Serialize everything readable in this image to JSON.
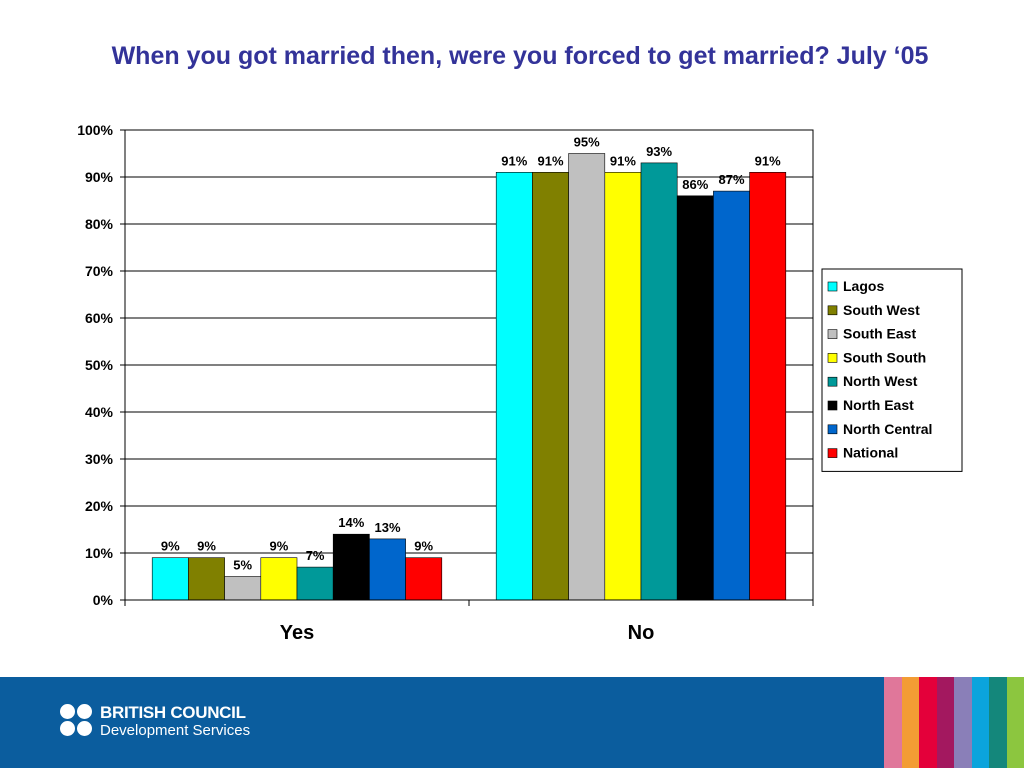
{
  "slide": {
    "title": "When you got married then, were you forced to get married? July ‘05"
  },
  "chart_data": {
    "type": "bar",
    "categories": [
      "Yes",
      "No"
    ],
    "series": [
      {
        "name": "Lagos",
        "color": "#00ffff",
        "values": [
          9,
          91
        ]
      },
      {
        "name": "South West",
        "color": "#808000",
        "values": [
          9,
          91
        ]
      },
      {
        "name": "South East",
        "color": "#c0c0c0",
        "values": [
          5,
          95
        ]
      },
      {
        "name": "South South",
        "color": "#ffff00",
        "values": [
          9,
          91
        ]
      },
      {
        "name": "North West",
        "color": "#009999",
        "values": [
          7,
          93
        ]
      },
      {
        "name": "North East",
        "color": "#000000",
        "values": [
          14,
          86
        ]
      },
      {
        "name": "North Central",
        "color": "#0066cc",
        "values": [
          13,
          87
        ]
      },
      {
        "name": "National",
        "color": "#ff0000",
        "values": [
          9,
          91
        ]
      }
    ],
    "y_ticks": [
      "0%",
      "10%",
      "20%",
      "30%",
      "40%",
      "50%",
      "60%",
      "70%",
      "80%",
      "90%",
      "100%"
    ],
    "ylim": [
      0,
      100
    ],
    "value_suffix": "%",
    "grid": true,
    "legend_position": "right"
  },
  "footer": {
    "logo_line1": "BRITISH COUNCIL",
    "logo_line2": "Development Services",
    "stripe_colors": [
      "#e0779a",
      "#f39c34",
      "#e4003a",
      "#a3185f",
      "#8a7fb8",
      "#0ba4dc",
      "#14877b",
      "#8cc63f"
    ],
    "background": "#0b5d9e"
  }
}
